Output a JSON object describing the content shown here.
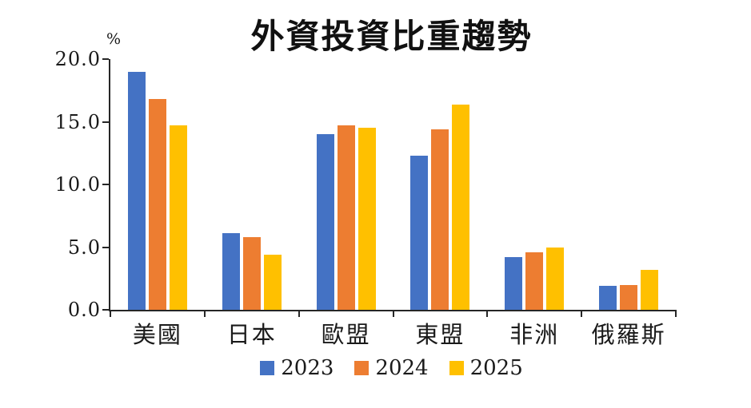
{
  "title": "外資投資比重趨勢",
  "y_axis_unit": "%",
  "chart_data": {
    "type": "bar",
    "title": "外資投資比重趨勢",
    "categories": [
      "美國",
      "日本",
      "歐盟",
      "東盟",
      "非洲",
      "俄羅斯"
    ],
    "series": [
      {
        "name": "2023",
        "color": "#4472C4",
        "values": [
          19.0,
          6.1,
          14.0,
          12.3,
          4.2,
          1.9
        ]
      },
      {
        "name": "2024",
        "color": "#ED7D31",
        "values": [
          16.8,
          5.8,
          14.7,
          14.4,
          4.6,
          2.0
        ]
      },
      {
        "name": "2025",
        "color": "#FFC000",
        "values": [
          14.7,
          4.4,
          14.5,
          16.4,
          5.0,
          3.2
        ]
      }
    ],
    "xlabel": "",
    "ylabel": "%",
    "ylim": [
      0,
      20
    ],
    "ytick_values": [
      0,
      5,
      10,
      15,
      20
    ],
    "ytick_labels": [
      "0.0",
      "5.0",
      "10.0",
      "15.0",
      "20.0"
    ],
    "grid": false,
    "legend_position": "bottom"
  }
}
